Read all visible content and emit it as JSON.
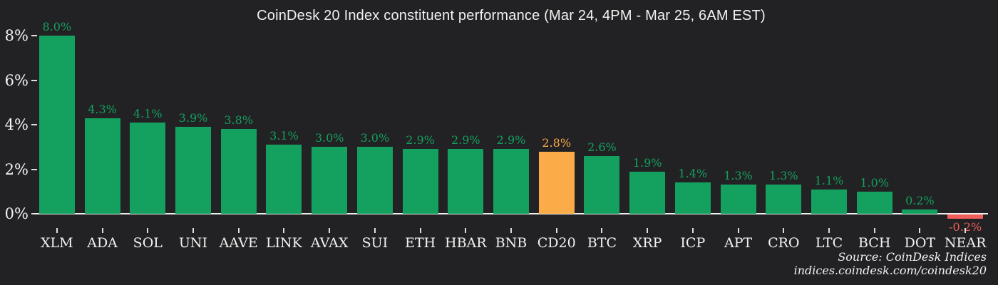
{
  "title": "CoinDesk 20 Index constituent performance (Mar 24, 4PM - Mar 25, 6AM EST)",
  "source": {
    "line1": "Source: CoinDesk Indices",
    "line2": "indices.coindesk.com/coindesk20"
  },
  "colors": {
    "background": "#222224",
    "positive": "#14a05f",
    "highlight": "#fbab48",
    "negative": "#f05f5a",
    "text": "#f2f2f2",
    "axis": "#eeeeee"
  },
  "chart_data": {
    "type": "bar",
    "title": "CoinDesk 20 Index constituent performance (Mar 24, 4PM - Mar 25, 6AM EST)",
    "categories": [
      "XLM",
      "ADA",
      "SOL",
      "UNI",
      "AAVE",
      "LINK",
      "AVAX",
      "SUI",
      "ETH",
      "HBAR",
      "BNB",
      "CD20",
      "BTC",
      "XRP",
      "ICP",
      "APT",
      "CRO",
      "LTC",
      "BCH",
      "DOT",
      "NEAR"
    ],
    "values": [
      8.0,
      4.3,
      4.1,
      3.9,
      3.8,
      3.1,
      3.0,
      3.0,
      2.9,
      2.9,
      2.9,
      2.8,
      2.6,
      1.9,
      1.4,
      1.3,
      1.3,
      1.1,
      1.0,
      0.2,
      -0.2
    ],
    "value_labels": [
      "8.0%",
      "4.3%",
      "4.1%",
      "3.9%",
      "3.8%",
      "3.1%",
      "3.0%",
      "3.0%",
      "2.9%",
      "2.9%",
      "2.9%",
      "2.8%",
      "2.6%",
      "1.9%",
      "1.4%",
      "1.3%",
      "1.3%",
      "1.1%",
      "1.0%",
      "0.2%",
      "-0.2%"
    ],
    "bar_roles": [
      "positive",
      "positive",
      "positive",
      "positive",
      "positive",
      "positive",
      "positive",
      "positive",
      "positive",
      "positive",
      "positive",
      "highlight",
      "positive",
      "positive",
      "positive",
      "positive",
      "positive",
      "positive",
      "positive",
      "positive",
      "negative"
    ],
    "highlighted_category": "CD20",
    "xlabel": "",
    "ylabel": "",
    "yticks": [
      {
        "value": 0,
        "label": "0%"
      },
      {
        "value": 2,
        "label": "2%"
      },
      {
        "value": 4,
        "label": "4%"
      },
      {
        "value": 6,
        "label": "6%"
      },
      {
        "value": 8,
        "label": "8%"
      }
    ],
    "ylim": [
      -0.6,
      8.6
    ],
    "grid": false,
    "legend": null
  }
}
